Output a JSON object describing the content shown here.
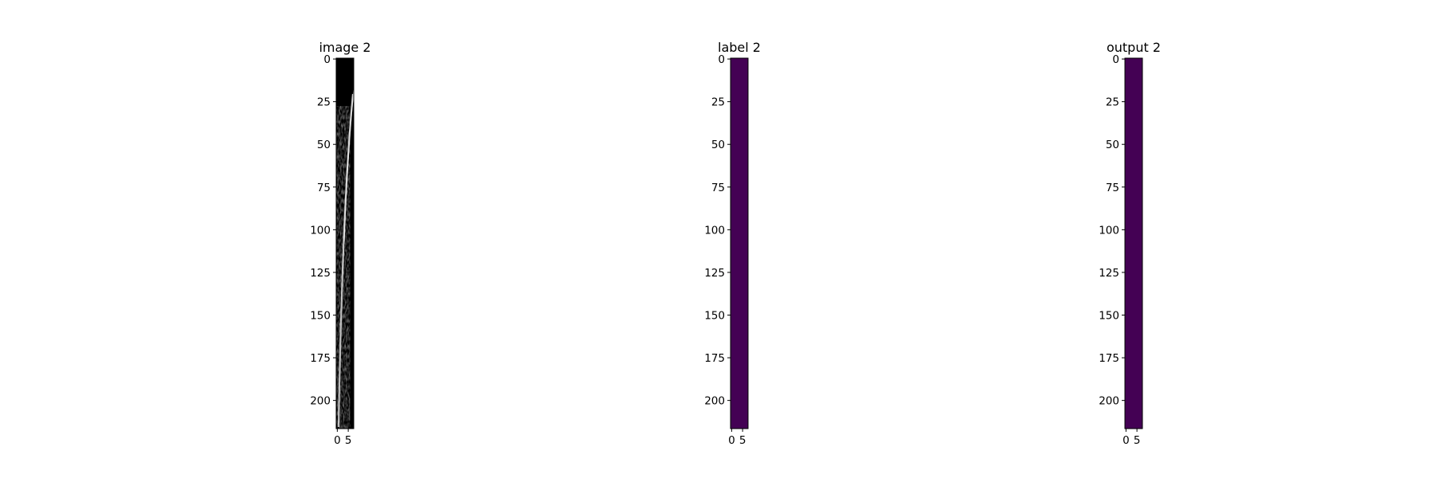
{
  "chart_data": [
    {
      "type": "heatmap",
      "title": "image 2",
      "colormap": "gray",
      "description_values": "grayscale ultrasound-like strip; bright curved band near the right edge at the top, brighter speckle toward the left side lower down",
      "xlim": [
        -0.5,
        7.5
      ],
      "ylim": [
        216.5,
        -0.5
      ],
      "x_ticks": [
        0,
        5
      ],
      "y_ticks": [
        0,
        25,
        50,
        75,
        100,
        125,
        150,
        175,
        200
      ],
      "fill_color": "#000000"
    },
    {
      "type": "heatmap",
      "title": "label 2",
      "colormap": "viridis",
      "uniform_value": 0,
      "xlim": [
        -0.5,
        7.5
      ],
      "ylim": [
        216.5,
        -0.5
      ],
      "x_ticks": [
        0,
        5
      ],
      "y_ticks": [
        0,
        25,
        50,
        75,
        100,
        125,
        150,
        175,
        200
      ],
      "fill_color": "#440154"
    },
    {
      "type": "heatmap",
      "title": "output 2",
      "colormap": "viridis",
      "uniform_value": 0,
      "xlim": [
        -0.5,
        7.5
      ],
      "ylim": [
        216.5,
        -0.5
      ],
      "x_ticks": [
        0,
        5
      ],
      "y_ticks": [
        0,
        25,
        50,
        75,
        100,
        125,
        150,
        175,
        200
      ],
      "fill_color": "#440154"
    }
  ]
}
